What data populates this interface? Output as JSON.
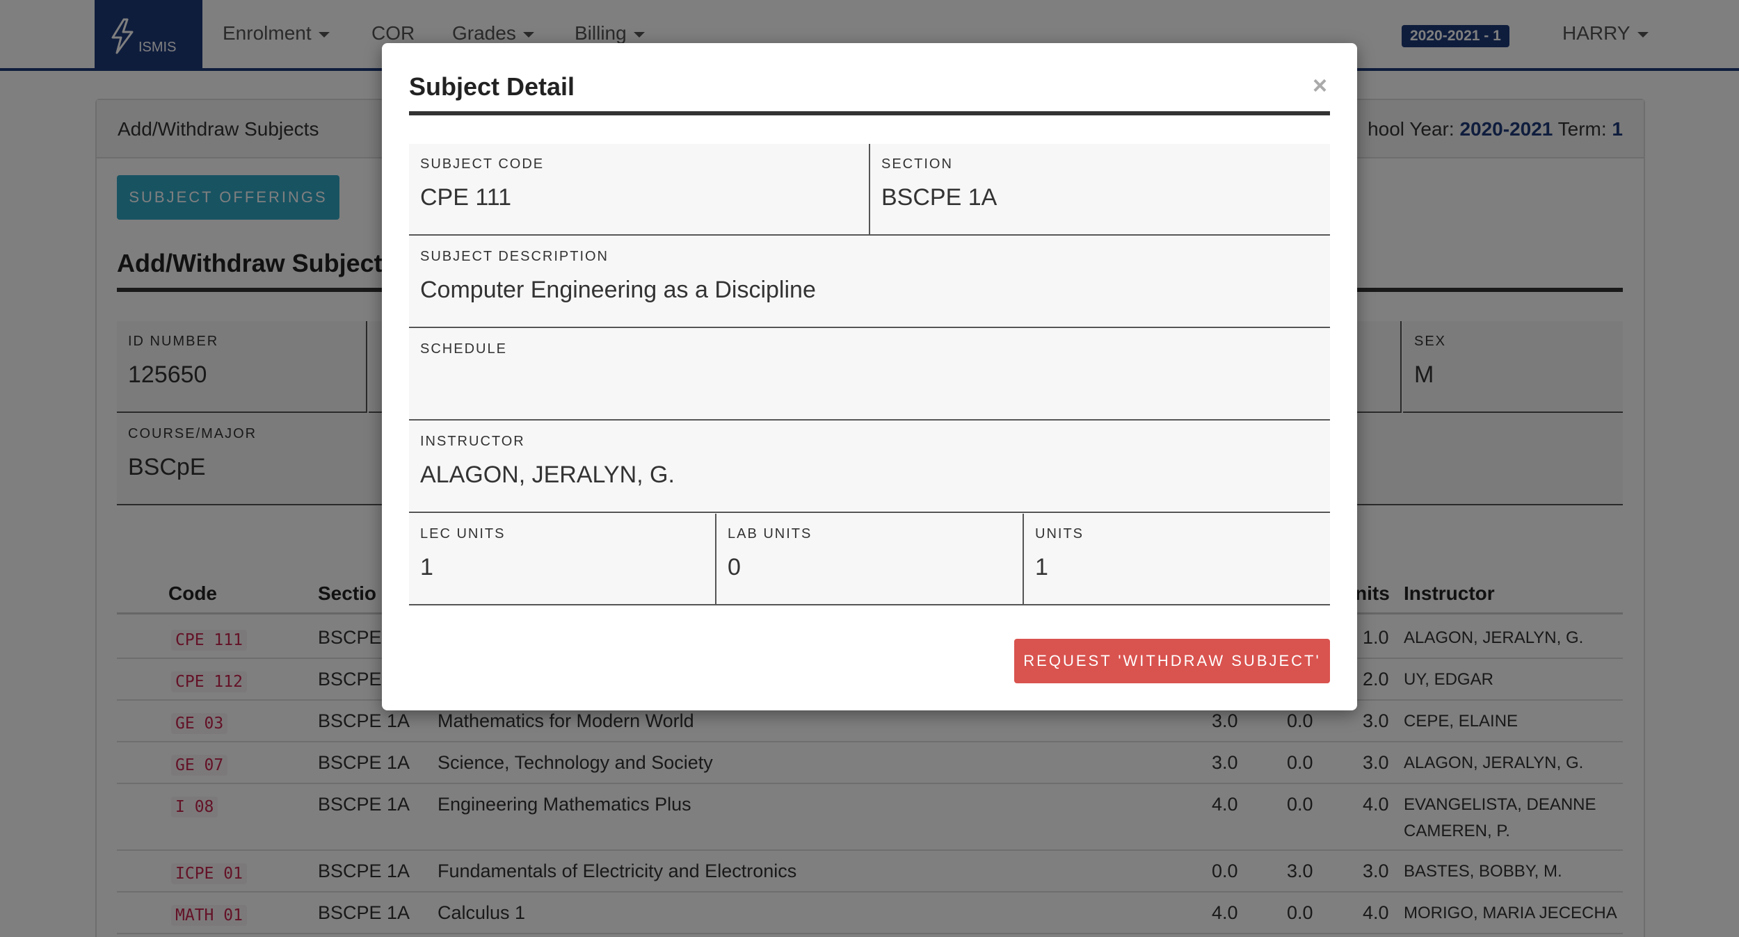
{
  "navbar": {
    "brand": "ISMIS",
    "items": [
      {
        "label": "Enrolment",
        "has_caret": true
      },
      {
        "label": "COR",
        "has_caret": false
      },
      {
        "label": "Grades",
        "has_caret": true
      },
      {
        "label": "Billing",
        "has_caret": true
      }
    ],
    "term_badge": "2020-2021 - 1",
    "user": "HARRY"
  },
  "card": {
    "title": "Add/Withdraw Subjects",
    "school_year_label": "hool Year:",
    "school_year": "2020-2021",
    "term_label": "Term:",
    "term": "1",
    "offerings_button": "SUBJECT OFFERINGS",
    "section_title": "Add/Withdraw Subject"
  },
  "student": {
    "id_label": "ID NUMBER",
    "id_value": "125650",
    "sex_label": "SEX",
    "sex_value": "M",
    "course_label": "COURSE/MAJOR",
    "course_value": "BSCpE"
  },
  "table": {
    "headers": {
      "code": "Code",
      "section": "Sectio",
      "units": "nits",
      "instructor": "Instructor"
    },
    "rows": [
      {
        "code": "CPE 111",
        "section": "BSCPE",
        "description": "",
        "lec": "",
        "lab": "",
        "units": "1.0",
        "instructor": "ALAGON, JERALYN, G."
      },
      {
        "code": "CPE 112",
        "section": "BSCPE",
        "description": "",
        "lec": "",
        "lab": "",
        "units": "2.0",
        "instructor": "UY, EDGAR"
      },
      {
        "code": "GE 03",
        "section": "BSCPE 1A",
        "description": "Mathematics for Modern World",
        "lec": "3.0",
        "lab": "0.0",
        "units": "3.0",
        "instructor": "CEPE, ELAINE"
      },
      {
        "code": "GE 07",
        "section": "BSCPE 1A",
        "description": "Science, Technology and Society",
        "lec": "3.0",
        "lab": "0.0",
        "units": "3.0",
        "instructor": "ALAGON, JERALYN, G."
      },
      {
        "code": "I 08",
        "section": "BSCPE 1A",
        "description": "Engineering Mathematics Plus",
        "lec": "4.0",
        "lab": "0.0",
        "units": "4.0",
        "instructor": "EVANGELISTA, DEANNE",
        "instructor2": "CAMEREN, P."
      },
      {
        "code": "ICPE 01",
        "section": "BSCPE 1A",
        "description": "Fundamentals of Electricity and Electronics",
        "lec": "0.0",
        "lab": "3.0",
        "units": "3.0",
        "instructor": "BASTES, BOBBY, M."
      },
      {
        "code": "MATH 01",
        "section": "BSCPE 1A",
        "description": "Calculus 1",
        "lec": "4.0",
        "lab": "0.0",
        "units": "4.0",
        "instructor": "MORIGO, MARIA JECECHA"
      }
    ]
  },
  "modal": {
    "title": "Subject Detail",
    "close": "×",
    "subject_code_label": "SUBJECT CODE",
    "subject_code": "CPE 111",
    "section_label": "SECTION",
    "section": "BSCPE 1A",
    "description_label": "SUBJECT DESCRIPTION",
    "description": "Computer Engineering as a Discipline",
    "schedule_label": "SCHEDULE",
    "schedule": "",
    "instructor_label": "INSTRUCTOR",
    "instructor": "ALAGON, JERALYN, G.",
    "lec_units_label": "LEC UNITS",
    "lec_units": "1",
    "lab_units_label": "LAB UNITS",
    "lab_units": "0",
    "units_label": "UNITS",
    "units": "1",
    "withdraw_button": "REQUEST 'WITHDRAW SUBJECT'"
  }
}
